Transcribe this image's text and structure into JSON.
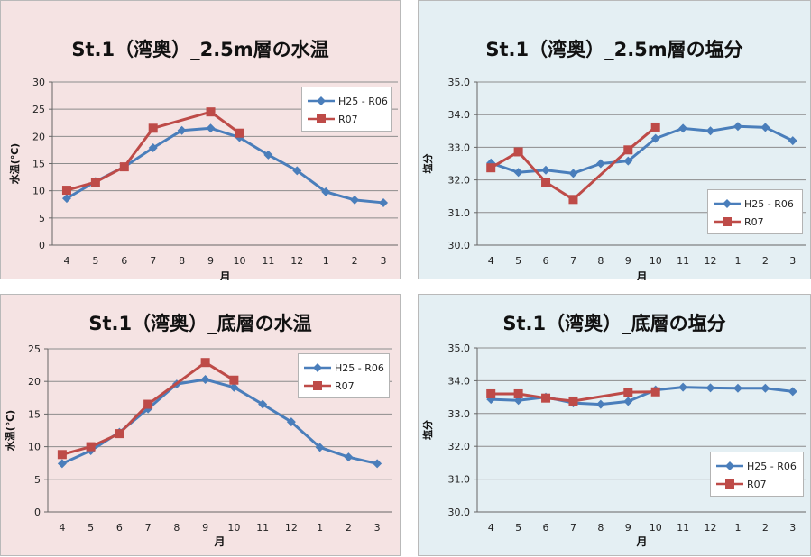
{
  "colors": {
    "series_blue": "#4a7ebb",
    "series_red": "#be4b48",
    "bg_pink": "#f5e3e3",
    "bg_blue": "#e4eff3",
    "grid": "#8c8c8c"
  },
  "chart_data": [
    {
      "type": "line",
      "title": "St.1（湾奥）_2.5m層の水温",
      "xlabel": "月",
      "ylabel": "水温(℃)",
      "categories": [
        "4",
        "5",
        "6",
        "7",
        "8",
        "9",
        "10",
        "11",
        "12",
        "1",
        "2",
        "3"
      ],
      "ylim": [
        0,
        30
      ],
      "yticks": [
        "0",
        "5",
        "10",
        "15",
        "20",
        "25",
        "30"
      ],
      "grid": true,
      "legend_position": "top-right",
      "series": [
        {
          "name": "H25 - R06",
          "values": [
            8.6,
            11.7,
            14.4,
            17.9,
            21.1,
            21.5,
            19.8,
            16.6,
            13.7,
            9.8,
            8.3,
            7.8
          ]
        },
        {
          "name": "R07",
          "values": [
            10.1,
            11.6,
            14.4,
            21.5,
            null,
            24.5,
            20.6,
            null,
            null,
            null,
            null,
            null
          ]
        }
      ]
    },
    {
      "type": "line",
      "title": "St.1（湾奥）_2.5m層の塩分",
      "xlabel": "月",
      "ylabel": "塩分",
      "categories": [
        "4",
        "5",
        "6",
        "7",
        "8",
        "9",
        "10",
        "11",
        "12",
        "1",
        "2",
        "3"
      ],
      "ylim": [
        30.0,
        35.0
      ],
      "yticks": [
        "30.0",
        "31.0",
        "32.0",
        "33.0",
        "34.0",
        "35.0"
      ],
      "grid": true,
      "legend_position": "middle-right",
      "series": [
        {
          "name": "H25 - R06",
          "values": [
            32.52,
            32.23,
            32.3,
            32.2,
            32.5,
            32.58,
            33.27,
            33.58,
            33.5,
            33.64,
            33.61,
            33.2
          ]
        },
        {
          "name": "R07",
          "values": [
            32.37,
            32.86,
            31.93,
            31.4,
            null,
            32.92,
            33.62,
            null,
            null,
            null,
            null,
            null
          ]
        }
      ]
    },
    {
      "type": "line",
      "title": "St.1（湾奥）_底層の水温",
      "xlabel": "月",
      "ylabel": "水温(℃)",
      "categories": [
        "4",
        "5",
        "6",
        "7",
        "8",
        "9",
        "10",
        "11",
        "12",
        "1",
        "2",
        "3"
      ],
      "ylim": [
        0,
        25
      ],
      "yticks": [
        "0",
        "5",
        "10",
        "15",
        "20",
        "25"
      ],
      "grid": true,
      "legend_position": "top-right",
      "series": [
        {
          "name": "H25 - R06",
          "values": [
            7.4,
            9.4,
            12.2,
            15.8,
            19.6,
            20.3,
            19.1,
            16.5,
            13.8,
            9.9,
            8.4,
            7.4
          ]
        },
        {
          "name": "R07",
          "values": [
            8.8,
            10.0,
            12.0,
            16.5,
            null,
            22.9,
            20.2,
            null,
            null,
            null,
            null,
            null
          ]
        }
      ]
    },
    {
      "type": "line",
      "title": "St.1（湾奥）_底層の塩分",
      "xlabel": "月",
      "ylabel": "塩分",
      "categories": [
        "4",
        "5",
        "6",
        "7",
        "8",
        "9",
        "10",
        "11",
        "12",
        "1",
        "2",
        "3"
      ],
      "ylim": [
        30.0,
        35.0
      ],
      "yticks": [
        "30.0",
        "31.0",
        "32.0",
        "33.0",
        "34.0",
        "35.0"
      ],
      "grid": true,
      "legend_position": "bottom-right",
      "series": [
        {
          "name": "H25 - R06",
          "values": [
            33.43,
            33.4,
            33.5,
            33.32,
            33.28,
            33.37,
            33.72,
            33.8,
            33.78,
            33.77,
            33.77,
            33.67
          ]
        },
        {
          "name": "R07",
          "values": [
            33.6,
            33.6,
            33.47,
            33.38,
            null,
            33.65,
            33.66,
            null,
            null,
            null,
            null,
            null
          ]
        }
      ]
    }
  ]
}
